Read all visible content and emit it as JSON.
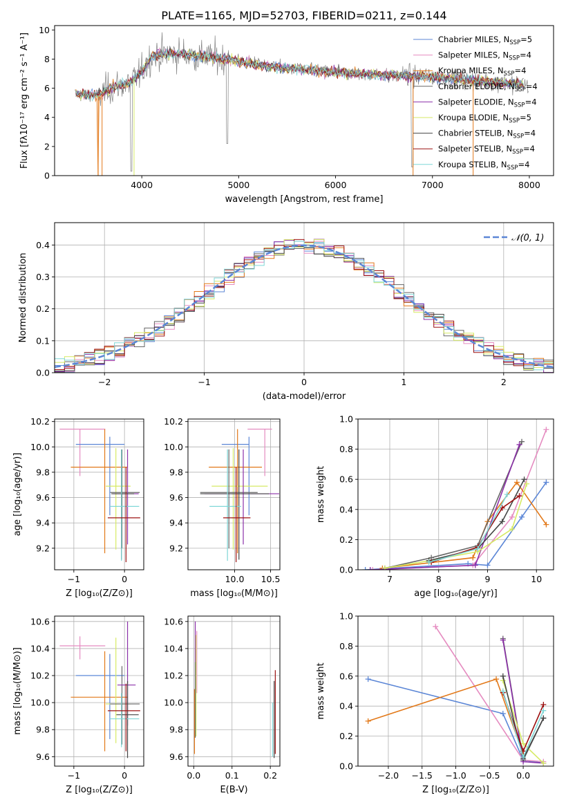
{
  "colors": {
    "chabrier_miles": "#5b86d6",
    "salpeter_miles": "#e58bc0",
    "kroupa_miles": "#e27818",
    "chabrier_elodie": "#666666",
    "salpeter_elodie": "#8b2fa8",
    "kroupa_elodie": "#d6ea64",
    "chabrier_stelib": "#444444",
    "salpeter_stelib": "#9b1010",
    "kroupa_stelib": "#7fd7d7",
    "observed": "#808080",
    "normal": "#5b86d6"
  },
  "chart_data": [
    {
      "id": "spectrum",
      "type": "line",
      "title": "PLATE=1165, MJD=52703, FIBERID=0211, z=0.144",
      "xlabel": "wavelength [Angstrom, rest frame]",
      "ylabel": "Flux [fλ10⁻¹⁷ erg cm⁻² s⁻¹ A⁻¹]",
      "xlim": [
        3100,
        8250
      ],
      "ylim": [
        0,
        10.3
      ],
      "xticks": [
        4000,
        5000,
        6000,
        7000,
        8000
      ],
      "yticks": [
        0,
        2,
        4,
        6,
        8,
        10
      ],
      "grid": false,
      "legend_position": "top-right",
      "series": [
        {
          "name": "Chabrier MILES, N",
          "sub": "SSP",
          "suffix": "=5",
          "color_key": "chabrier_miles"
        },
        {
          "name": "Salpeter MILES, N",
          "sub": "SSP",
          "suffix": "=4",
          "color_key": "salpeter_miles"
        },
        {
          "name": "Kroupa MILES, N",
          "sub": "SSP",
          "suffix": "=4",
          "color_key": "kroupa_miles"
        },
        {
          "name": "Chabrier ELODIE, N",
          "sub": "SSP",
          "suffix": "=4",
          "color_key": "chabrier_elodie"
        },
        {
          "name": "Salpeter ELODIE, N",
          "sub": "SSP",
          "suffix": "=4",
          "color_key": "salpeter_elodie"
        },
        {
          "name": "Kroupa ELODIE, N",
          "sub": "SSP",
          "suffix": "=5",
          "color_key": "kroupa_elodie"
        },
        {
          "name": "Chabrier STELIB, N",
          "sub": "SSP",
          "suffix": "=4",
          "color_key": "chabrier_stelib"
        },
        {
          "name": "Salpeter STELIB, N",
          "sub": "SSP",
          "suffix": "=4",
          "color_key": "salpeter_stelib"
        },
        {
          "name": "Kroupa STELIB, N",
          "sub": "SSP",
          "suffix": "=4",
          "color_key": "kroupa_stelib"
        }
      ],
      "continuum_points": [
        [
          3300,
          5.6
        ],
        [
          3550,
          5.5
        ],
        [
          3700,
          6.1
        ],
        [
          3850,
          6.3
        ],
        [
          4000,
          7.1
        ],
        [
          4100,
          8.2
        ],
        [
          4300,
          8.4
        ],
        [
          4600,
          8.2
        ],
        [
          4900,
          8.0
        ],
        [
          5200,
          7.6
        ],
        [
          5600,
          7.3
        ],
        [
          6000,
          7.1
        ],
        [
          6500,
          6.9
        ],
        [
          7000,
          6.8
        ],
        [
          7500,
          6.5
        ],
        [
          8000,
          6.2
        ]
      ]
    },
    {
      "id": "residuals",
      "type": "histogram",
      "xlabel": "(data-model)/error",
      "ylabel": "Normed distribution",
      "xlim": [
        -2.5,
        2.5
      ],
      "ylim": [
        0,
        0.47
      ],
      "xticks": [
        -2,
        -1,
        0,
        1,
        2
      ],
      "yticks": [
        0.0,
        0.1,
        0.2,
        0.3,
        0.4
      ],
      "grid": true,
      "bin_width": 0.1,
      "legend": {
        "label": "𝒩(0, 1)",
        "position": "top-right"
      }
    },
    {
      "id": "age_vs_Z",
      "type": "scatter-errorbar",
      "xlabel": "Z [log₁₀(Z/Z⊙)]",
      "ylabel": "age  [log₁₀(age/yr)]",
      "xlim": [
        -1.38,
        0.38
      ],
      "ylim": [
        9.03,
        10.22
      ],
      "xticks": [
        -1,
        0
      ],
      "yticks": [
        9.2,
        9.4,
        9.6,
        9.8,
        10.0,
        10.2
      ],
      "grid": true,
      "points": [
        {
          "color_key": "salpeter_miles",
          "x": -0.88,
          "xerr": [
            0.4,
            0.5
          ],
          "y": 10.14,
          "yerr": [
            0.37,
            0.0
          ]
        },
        {
          "color_key": "chabrier_miles",
          "x": -0.29,
          "xerr": [
            0.67,
            0.29
          ],
          "y": 10.02,
          "yerr": [
            0.56,
            0.06
          ]
        },
        {
          "color_key": "kroupa_miles",
          "x": -0.39,
          "xerr": [
            0.67,
            0.45
          ],
          "y": 9.84,
          "yerr": [
            0.68,
            0.3
          ]
        },
        {
          "color_key": "kroupa_elodie",
          "x": -0.17,
          "xerr": [
            0.2,
            0.29
          ],
          "y": 9.69,
          "yerr": [
            0.5,
            0.3
          ]
        },
        {
          "color_key": "chabrier_elodie",
          "x": -0.05,
          "xerr": [
            0.23,
            0.35
          ],
          "y": 9.64,
          "yerr": [
            0.44,
            0.34
          ]
        },
        {
          "color_key": "salpeter_elodie",
          "x": 0.06,
          "xerr": [
            0.28,
            0.22
          ],
          "y": 9.63,
          "yerr": [
            0.4,
            0.35
          ]
        },
        {
          "color_key": "chabrier_stelib",
          "x": -0.06,
          "xerr": [
            0.2,
            0.25
          ],
          "y": 9.63,
          "yerr": [
            0.52,
            0.35
          ]
        },
        {
          "color_key": "kroupa_stelib",
          "x": -0.06,
          "xerr": [
            0.23,
            0.35
          ],
          "y": 9.53,
          "yerr": [
            0.43,
            0.45
          ]
        },
        {
          "color_key": "salpeter_stelib",
          "x": 0.03,
          "xerr": [
            0.36,
            0.28
          ],
          "y": 9.44,
          "yerr": [
            0.35,
            0.4
          ]
        }
      ]
    },
    {
      "id": "age_vs_mass",
      "type": "scatter-errorbar",
      "xlabel": "mass [log₁₀(M/M⊙)]",
      "ylabel": "",
      "xlim": [
        9.35,
        10.63
      ],
      "ylim": [
        9.03,
        10.22
      ],
      "xticks": [
        10.0,
        10.5
      ],
      "yticks": [
        9.2,
        9.4,
        9.6,
        9.8,
        10.0,
        10.2
      ],
      "grid": true,
      "points": [
        {
          "color_key": "salpeter_miles",
          "x": 10.42,
          "xerr": [
            0.24,
            0.1
          ],
          "y": 10.14,
          "yerr": [
            0.37,
            0.0
          ]
        },
        {
          "color_key": "chabrier_miles",
          "x": 10.2,
          "xerr": [
            0.38,
            0.0
          ],
          "y": 10.02,
          "yerr": [
            0.56,
            0.06
          ]
        },
        {
          "color_key": "kroupa_miles",
          "x": 10.04,
          "xerr": [
            0.4,
            0.34
          ],
          "y": 9.84,
          "yerr": [
            0.68,
            0.3
          ]
        },
        {
          "color_key": "kroupa_elodie",
          "x": 9.98,
          "xerr": [
            0.3,
            0.48
          ],
          "y": 9.69,
          "yerr": [
            0.5,
            0.3
          ]
        },
        {
          "color_key": "chabrier_elodie",
          "x": 9.92,
          "xerr": [
            0.4,
            0.4
          ],
          "y": 9.64,
          "yerr": [
            0.44,
            0.34
          ]
        },
        {
          "color_key": "salpeter_elodie",
          "x": 10.12,
          "xerr": [
            0.54,
            0.5
          ],
          "y": 9.63,
          "yerr": [
            0.4,
            0.35
          ]
        },
        {
          "color_key": "chabrier_stelib",
          "x": 10.06,
          "xerr": [
            0.54,
            0.42
          ],
          "y": 9.63,
          "yerr": [
            0.52,
            0.35
          ]
        },
        {
          "color_key": "kroupa_stelib",
          "x": 9.9,
          "xerr": [
            0.25,
            0.19
          ],
          "y": 9.53,
          "yerr": [
            0.43,
            0.45
          ]
        },
        {
          "color_key": "salpeter_stelib",
          "x": 10.02,
          "xerr": [
            0.18,
            0.2
          ],
          "y": 9.44,
          "yerr": [
            0.35,
            0.4
          ]
        }
      ]
    },
    {
      "id": "mass_weight_vs_age",
      "type": "line",
      "xlabel": "age  [log₁₀(age/yr)]",
      "ylabel": "mass weight",
      "xlim": [
        6.35,
        10.35
      ],
      "ylim": [
        0,
        1
      ],
      "xticks": [
        7,
        8,
        9,
        10
      ],
      "yticks": [
        0.0,
        0.2,
        0.4,
        0.6,
        0.8,
        1.0
      ],
      "grid": true,
      "series": [
        {
          "color_key": "chabrier_miles",
          "x": [
            6.5,
            8.6,
            9.0,
            9.7,
            10.2
          ],
          "y": [
            0.0,
            0.04,
            0.03,
            0.35,
            0.58
          ]
        },
        {
          "color_key": "salpeter_miles",
          "x": [
            6.65,
            8.7,
            9.5,
            10.2
          ],
          "y": [
            0.0,
            0.03,
            0.35,
            0.93
          ]
        },
        {
          "color_key": "kroupa_miles",
          "x": [
            6.85,
            8.7,
            9.0,
            9.6,
            10.2
          ],
          "y": [
            0.01,
            0.08,
            0.32,
            0.58,
            0.3
          ]
        },
        {
          "color_key": "chabrier_elodie",
          "x": [
            6.9,
            7.85,
            8.8,
            9.7
          ],
          "y": [
            0.01,
            0.08,
            0.16,
            0.85
          ]
        },
        {
          "color_key": "salpeter_elodie",
          "x": [
            6.6,
            8.75,
            9.65
          ],
          "y": [
            0.0,
            0.03,
            0.83
          ]
        },
        {
          "color_key": "kroupa_elodie",
          "x": [
            6.9,
            7.8,
            8.8,
            9.5,
            9.8
          ],
          "y": [
            0.01,
            0.06,
            0.12,
            0.27,
            0.57
          ]
        },
        {
          "color_key": "chabrier_stelib",
          "x": [
            7.8,
            8.8,
            9.3,
            9.75
          ],
          "y": [
            0.06,
            0.14,
            0.32,
            0.6
          ]
        },
        {
          "color_key": "salpeter_stelib",
          "x": [
            7.85,
            8.8,
            9.3,
            9.65
          ],
          "y": [
            0.05,
            0.15,
            0.41,
            0.49
          ]
        },
        {
          "color_key": "kroupa_stelib",
          "x": [
            7.8,
            8.8,
            9.4
          ],
          "y": [
            0.05,
            0.14,
            0.5
          ]
        }
      ]
    },
    {
      "id": "mass_vs_Z",
      "type": "scatter-errorbar",
      "xlabel": "Z [log₁₀(Z/Z⊙)]",
      "ylabel": "mass [log₁₀(M/M⊙)]",
      "xlim": [
        -1.38,
        0.38
      ],
      "ylim": [
        9.53,
        10.64
      ],
      "xticks": [
        -1,
        0
      ],
      "yticks": [
        9.6,
        9.8,
        10.0,
        10.2,
        10.4,
        10.6
      ],
      "grid": true,
      "points": [
        {
          "color_key": "salpeter_miles",
          "x": -0.88,
          "xerr": [
            0.4,
            0.5
          ],
          "y": 10.42,
          "yerr": [
            0.1,
            0.07
          ]
        },
        {
          "color_key": "chabrier_miles",
          "x": -0.29,
          "xerr": [
            0.67,
            0.29
          ],
          "y": 10.2,
          "yerr": [
            0.47,
            0.16
          ]
        },
        {
          "color_key": "kroupa_miles",
          "x": -0.39,
          "xerr": [
            0.67,
            0.45
          ],
          "y": 10.04,
          "yerr": [
            0.4,
            0.34
          ]
        },
        {
          "color_key": "kroupa_elodie",
          "x": -0.17,
          "xerr": [
            0.2,
            0.29
          ],
          "y": 9.99,
          "yerr": [
            0.29,
            0.49
          ]
        },
        {
          "color_key": "chabrier_elodie",
          "x": -0.05,
          "xerr": [
            0.23,
            0.35
          ],
          "y": 9.99,
          "yerr": [
            0.3,
            0.28
          ]
        },
        {
          "color_key": "salpeter_elodie",
          "x": 0.06,
          "xerr": [
            0.2,
            0.16
          ],
          "y": 10.13,
          "yerr": [
            0.3,
            0.47
          ]
        },
        {
          "color_key": "chabrier_stelib",
          "x": 0.06,
          "xerr": [
            0.22,
            0.22
          ],
          "y": 9.91,
          "yerr": [
            0.32,
            0.25
          ]
        },
        {
          "color_key": "kroupa_stelib",
          "x": -0.06,
          "xerr": [
            0.23,
            0.35
          ],
          "y": 9.88,
          "yerr": [
            0.21,
            0.19
          ]
        },
        {
          "color_key": "salpeter_stelib",
          "x": 0.03,
          "xerr": [
            0.36,
            0.28
          ],
          "y": 9.94,
          "yerr": [
            0.3,
            0.2
          ]
        }
      ]
    },
    {
      "id": "mass_vs_ebv",
      "type": "scatter-errorbar",
      "xlabel": "E(B-V)",
      "ylabel": "",
      "xlim": [
        -0.015,
        0.225
      ],
      "ylim": [
        9.53,
        10.64
      ],
      "xticks": [
        0.0,
        0.1,
        0.2
      ],
      "yticks": [
        9.6,
        9.8,
        10.0,
        10.2,
        10.4,
        10.6
      ],
      "grid": true,
      "points": [
        {
          "color_key": "salpeter_miles",
          "x": 0.008,
          "xerr": [
            0,
            0
          ],
          "y": 10.35,
          "yerr": [
            0.28,
            0.18
          ]
        },
        {
          "color_key": "kroupa_miles",
          "x": 0.002,
          "xerr": [
            0,
            0
          ],
          "y": 9.9,
          "yerr": [
            0.28,
            0.2
          ]
        },
        {
          "color_key": "salpeter_elodie",
          "x": 0.004,
          "xerr": [
            0,
            0
          ],
          "y": 10.3,
          "yerr": [
            0.22,
            0.3
          ]
        },
        {
          "color_key": "kroupa_elodie",
          "x": 0.006,
          "xerr": [
            0,
            0
          ],
          "y": 10.05,
          "yerr": [
            0.3,
            0.45
          ]
        },
        {
          "color_key": "chabrier_elodie",
          "x": 0.004,
          "xerr": [
            0,
            0
          ],
          "y": 10.0,
          "yerr": [
            0.26,
            0.3
          ]
        },
        {
          "color_key": "chabrier_stelib",
          "x": 0.21,
          "xerr": [
            0,
            0
          ],
          "y": 9.88,
          "yerr": [
            0.29,
            0.28
          ]
        },
        {
          "color_key": "salpeter_stelib",
          "x": 0.213,
          "xerr": [
            0,
            0
          ],
          "y": 9.94,
          "yerr": [
            0.32,
            0.3
          ]
        },
        {
          "color_key": "kroupa_stelib",
          "x": 0.206,
          "xerr": [
            0,
            0
          ],
          "y": 9.8,
          "yerr": [
            0.2,
            0.2
          ]
        }
      ]
    },
    {
      "id": "mass_weight_vs_Z",
      "type": "line",
      "xlabel": "Z [log₁₀(Z/Z⊙)]",
      "ylabel": "mass weight",
      "xlim": [
        -2.45,
        0.45
      ],
      "ylim": [
        0,
        1
      ],
      "xticks": [
        -2.0,
        -1.5,
        -1.0,
        -0.5,
        0.0
      ],
      "yticks": [
        0.0,
        0.2,
        0.4,
        0.6,
        0.8,
        1.0
      ],
      "grid": true,
      "series": [
        {
          "color_key": "chabrier_miles",
          "x": [
            -2.3,
            -0.3,
            0.0,
            0.3
          ],
          "y": [
            0.58,
            0.35,
            0.04,
            0.02
          ]
        },
        {
          "color_key": "salpeter_miles",
          "x": [
            -1.3,
            0.0,
            0.3
          ],
          "y": [
            0.93,
            0.04,
            0.03
          ]
        },
        {
          "color_key": "kroupa_miles",
          "x": [
            -2.3,
            -0.4,
            0.0
          ],
          "y": [
            0.3,
            0.58,
            0.08
          ]
        },
        {
          "color_key": "chabrier_elodie",
          "x": [
            -0.3,
            0.0,
            0.3
          ],
          "y": [
            0.85,
            0.04,
            0.32
          ]
        },
        {
          "color_key": "salpeter_elodie",
          "x": [
            -0.3,
            0.0,
            0.3
          ],
          "y": [
            0.84,
            0.03,
            0.02
          ]
        },
        {
          "color_key": "kroupa_elodie",
          "x": [
            -0.3,
            0.0,
            0.3
          ],
          "y": [
            0.57,
            0.15,
            0.02
          ]
        },
        {
          "color_key": "chabrier_stelib",
          "x": [
            -0.3,
            0.0,
            0.3
          ],
          "y": [
            0.6,
            0.05,
            0.32
          ]
        },
        {
          "color_key": "salpeter_stelib",
          "x": [
            -0.3,
            0.0,
            0.3
          ],
          "y": [
            0.49,
            0.1,
            0.41
          ]
        },
        {
          "color_key": "kroupa_stelib",
          "x": [
            -0.3,
            0.0,
            0.3
          ],
          "y": [
            0.5,
            0.06,
            0.37
          ]
        }
      ]
    }
  ]
}
